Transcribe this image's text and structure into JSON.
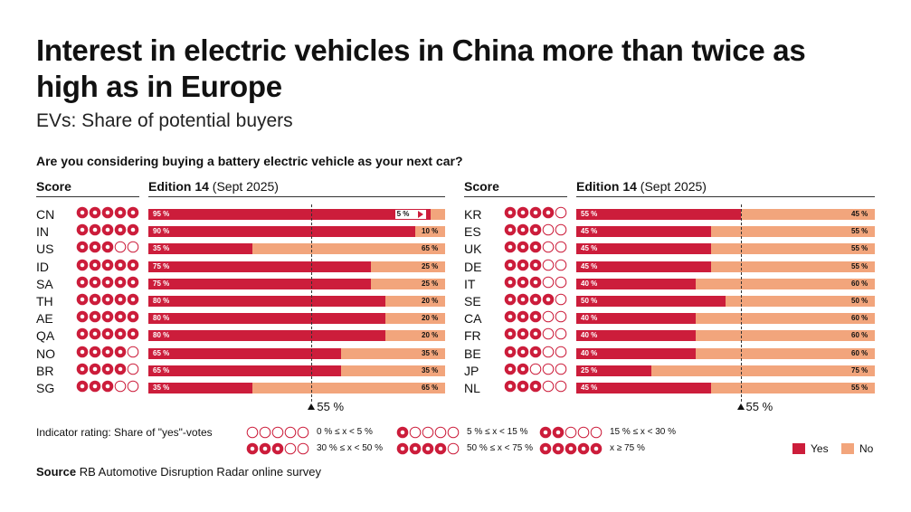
{
  "title": "Interest in electric vehicles in China more than twice as high as in Europe",
  "subtitle": "EVs: Share of potential buyers",
  "question": "Are you considering buying a battery electric vehicle as your next car?",
  "headers": {
    "score": "Score",
    "edition_bold": "Edition 14",
    "edition_rest": " (Sept 2025)"
  },
  "colors": {
    "yes": "#cc1d3b",
    "no": "#f2a57c"
  },
  "reference": {
    "value": 55,
    "label": "55 %"
  },
  "legend": {
    "title": "Indicator rating: Share of \"yes\"-votes",
    "items": [
      {
        "filled": 0,
        "label": "0 % ≤ x < 5 %"
      },
      {
        "filled": 1,
        "label": "5 % ≤ x < 15 %"
      },
      {
        "filled": 2,
        "label": "15 % ≤ x < 30 %"
      },
      {
        "filled": 3,
        "label": "30 % ≤ x < 50 %"
      },
      {
        "filled": 4,
        "label": "50 % ≤ x < 75 %"
      },
      {
        "filled": 5,
        "label": "x ≥ 75 %"
      }
    ],
    "yes_label": "Yes",
    "no_label": "No"
  },
  "source": {
    "label": "Source",
    "text": " RB Automotive Disruption Radar online survey"
  },
  "chart_data": [
    {
      "type": "bar",
      "stacked": true,
      "orientation": "horizontal",
      "categories": [
        "CN",
        "IN",
        "US",
        "ID",
        "SA",
        "TH",
        "AE",
        "QA",
        "NO",
        "BR",
        "SG"
      ],
      "score": [
        5,
        5,
        3,
        5,
        5,
        5,
        5,
        5,
        4,
        4,
        3
      ],
      "series": [
        {
          "name": "Yes",
          "values": [
            95,
            90,
            35,
            75,
            75,
            80,
            80,
            80,
            65,
            65,
            35
          ]
        },
        {
          "name": "No",
          "values": [
            5,
            10,
            65,
            25,
            25,
            20,
            20,
            20,
            35,
            35,
            65
          ]
        }
      ],
      "xlim": [
        0,
        100
      ],
      "reference_line": 55
    },
    {
      "type": "bar",
      "stacked": true,
      "orientation": "horizontal",
      "categories": [
        "KR",
        "ES",
        "UK",
        "DE",
        "IT",
        "SE",
        "CA",
        "FR",
        "BE",
        "JP",
        "NL"
      ],
      "score": [
        4,
        3,
        3,
        3,
        3,
        4,
        3,
        3,
        3,
        2,
        3
      ],
      "series": [
        {
          "name": "Yes",
          "values": [
            55,
            45,
            45,
            45,
            40,
            50,
            40,
            40,
            40,
            25,
            45
          ]
        },
        {
          "name": "No",
          "values": [
            45,
            55,
            55,
            55,
            60,
            50,
            60,
            60,
            60,
            75,
            55
          ]
        }
      ],
      "xlim": [
        0,
        100
      ],
      "reference_line": 55
    }
  ]
}
